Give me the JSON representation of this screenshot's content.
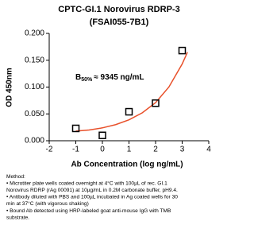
{
  "chart_data": {
    "type": "scatter",
    "title_lines": [
      "CPTC-GI.1 Norovirus RDRP-3",
      "(FSAI055-7B1)"
    ],
    "x_label": "Ab Concentration (log ng/mL)",
    "y_label": "OD 450nm",
    "annotation": {
      "text": "B",
      "sub": "50%",
      "rest": "≈ 9345 ng/mL"
    },
    "x": [
      -1,
      0,
      1,
      2,
      3
    ],
    "values": [
      0.023,
      0.01,
      0.054,
      0.07,
      0.168
    ],
    "color": "#000000",
    "fit": {
      "x": [
        -1,
        -0.5,
        0,
        0.5,
        1,
        1.5,
        2,
        2.5,
        3,
        3.2
      ],
      "values": [
        0.018,
        0.02,
        0.024,
        0.03,
        0.039,
        0.052,
        0.071,
        0.1,
        0.143,
        0.165
      ],
      "color": "#e8502a"
    },
    "xlim": [
      -2,
      4
    ],
    "xticks": [
      -2,
      -1,
      0,
      1,
      2,
      3,
      4
    ],
    "ylim": [
      0,
      0.2
    ],
    "yticks": [
      {
        "value": 0,
        "label": "0.000"
      },
      {
        "value": 0.05,
        "label": "0.050"
      },
      {
        "value": 0.1,
        "label": "0.100"
      },
      {
        "value": 0.15,
        "label": "0.150"
      },
      {
        "value": 0.2,
        "label": "0.200"
      }
    ],
    "grid": false,
    "method_lines": [
      "Method:",
      "• Microtiter plate wells coated overnight at 4°C  with 100µL of rec. GI.1",
      "Norovirus RDRP (rAg 00091) at 10µg/mL in 0.2M carbonate buffer, pH9.4.",
      "• Antibody diluted with PBS and 100µL incubated in Ag coated wells for 30",
      "min at 37°C (with vigorous shaking)",
      "• Bound Ab detected using HRP-labeled goat anti-mouse IgG with TMB",
      "substrate."
    ]
  }
}
